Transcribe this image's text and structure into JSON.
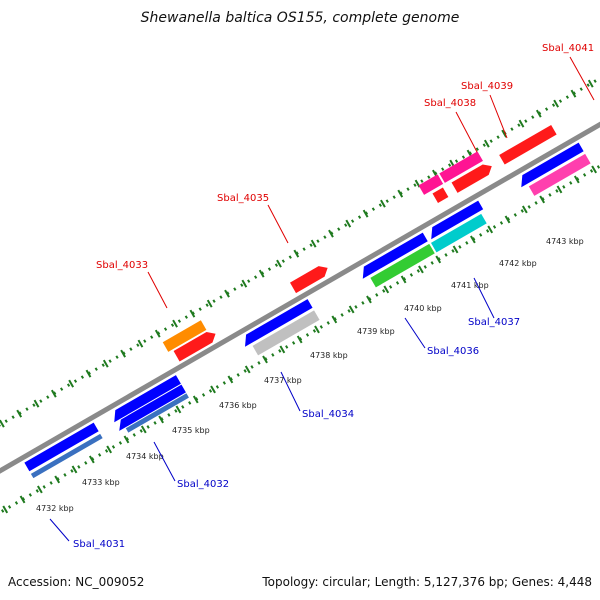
{
  "title": "Shewanella baltica OS155, complete genome",
  "footer": {
    "accession": "Accession: NC_009052",
    "summary": "Topology: circular; Length: 5,127,376 bp; Genes: 4,448"
  },
  "colors": {
    "forward_label": "#e00000",
    "reverse_label": "#0000c8",
    "backbone": "#8a8a8a",
    "ticks": "#1f7a1f"
  },
  "ticks": [
    {
      "label": "4732 kbp"
    },
    {
      "label": "4733 kbp"
    },
    {
      "label": "4734 kbp"
    },
    {
      "label": "4735 kbp"
    },
    {
      "label": "4736 kbp"
    },
    {
      "label": "4737 kbp"
    },
    {
      "label": "4738 kbp"
    },
    {
      "label": "4739 kbp"
    },
    {
      "label": "4740 kbp"
    },
    {
      "label": "4741 kbp"
    },
    {
      "label": "4742 kbp"
    },
    {
      "label": "4743 kbp"
    }
  ],
  "forward_labels": [
    {
      "id": "Sbal_4033"
    },
    {
      "id": "Sbal_4035"
    },
    {
      "id": "Sbal_4038"
    },
    {
      "id": "Sbal_4039"
    },
    {
      "id": "Sbal_4041"
    }
  ],
  "reverse_labels": [
    {
      "id": "Sbal_4031"
    },
    {
      "id": "Sbal_4032"
    },
    {
      "id": "Sbal_4034"
    },
    {
      "id": "Sbal_4036"
    },
    {
      "id": "Sbal_4037"
    }
  ]
}
